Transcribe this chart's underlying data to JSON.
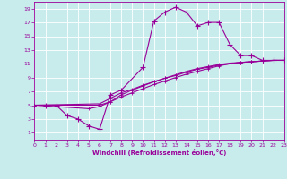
{
  "xlabel": "Windchill (Refroidissement éolien,°C)",
  "bg_color": "#c8ecec",
  "line_color": "#990099",
  "grid_color": "#ffffff",
  "x_min": 0,
  "x_max": 23,
  "y_min": 0,
  "y_max": 20,
  "yticks": [
    1,
    3,
    5,
    7,
    9,
    11,
    13,
    15,
    17,
    19
  ],
  "xticks": [
    0,
    1,
    2,
    3,
    4,
    5,
    6,
    7,
    8,
    9,
    10,
    11,
    12,
    13,
    14,
    15,
    16,
    17,
    18,
    19,
    20,
    21,
    22,
    23
  ],
  "line1_x": [
    1,
    2,
    3,
    4,
    5,
    6,
    7,
    8,
    10,
    11,
    12,
    13,
    14,
    15,
    16,
    17,
    18,
    19,
    20,
    21,
    22,
    23
  ],
  "line1_y": [
    5,
    5,
    3.5,
    3,
    2,
    1.5,
    6.5,
    7.2,
    10.5,
    17.2,
    18.5,
    19.2,
    18.5,
    16.5,
    17.0,
    17.0,
    13.8,
    12.2,
    12.2,
    11.5,
    11.5,
    11.5
  ],
  "line2_x": [
    0,
    6,
    7,
    8,
    9,
    10,
    11,
    12,
    13,
    14,
    15,
    16,
    17,
    18,
    19,
    20,
    21,
    22,
    23
  ],
  "line2_y": [
    5,
    5.2,
    6.0,
    6.8,
    7.3,
    7.9,
    8.4,
    8.9,
    9.4,
    9.9,
    10.3,
    10.6,
    10.9,
    11.1,
    11.2,
    11.3,
    11.4,
    11.5,
    11.5
  ],
  "line3_x": [
    0,
    6,
    7,
    8,
    9,
    10,
    11,
    12,
    13,
    14,
    15,
    16,
    17,
    18,
    19,
    20,
    21,
    22,
    23
  ],
  "line3_y": [
    5,
    5.0,
    5.5,
    6.2,
    6.8,
    7.4,
    8.0,
    8.5,
    9.0,
    9.5,
    9.9,
    10.3,
    10.7,
    11.0,
    11.2,
    11.3,
    11.4,
    11.5,
    11.5
  ],
  "line4_x": [
    0,
    5,
    6,
    7,
    8,
    9,
    10,
    11,
    12,
    13,
    14,
    15,
    16,
    17,
    18,
    19,
    20,
    21,
    22,
    23
  ],
  "line4_y": [
    5,
    4.5,
    4.8,
    5.5,
    6.5,
    7.2,
    7.8,
    8.4,
    8.9,
    9.3,
    9.8,
    10.2,
    10.5,
    10.8,
    11.0,
    11.2,
    11.3,
    11.4,
    11.5,
    11.5
  ]
}
